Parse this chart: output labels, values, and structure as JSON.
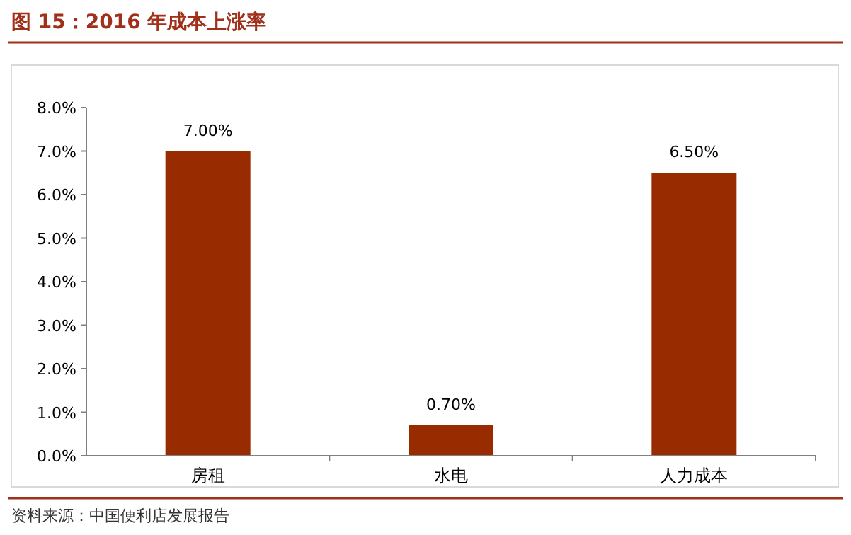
{
  "chart_data": {
    "type": "bar",
    "title": "图 15：2016 年成本上涨率",
    "categories": [
      "房租",
      "水电",
      "人力成本"
    ],
    "values": [
      7,
      0.7,
      6.5
    ],
    "value_labels": [
      "7.00%",
      "0.70%",
      "6.50%"
    ],
    "color": "#992b00",
    "ylim": [
      0,
      8
    ],
    "yticks": [
      {
        "value": 0,
        "label": "0.0%"
      },
      {
        "value": 1,
        "label": "1.0%"
      },
      {
        "value": 2,
        "label": "2.0%"
      },
      {
        "value": 3,
        "label": "3.0%"
      },
      {
        "value": 4,
        "label": "4.0%"
      },
      {
        "value": 5,
        "label": "5.0%"
      },
      {
        "value": 6,
        "label": "6.0%"
      },
      {
        "value": 7,
        "label": "7.0%"
      },
      {
        "value": 8,
        "label": "8.0%"
      }
    ],
    "grid": false,
    "annotations": [
      "资料来源：中国便利店发展报告"
    ]
  }
}
